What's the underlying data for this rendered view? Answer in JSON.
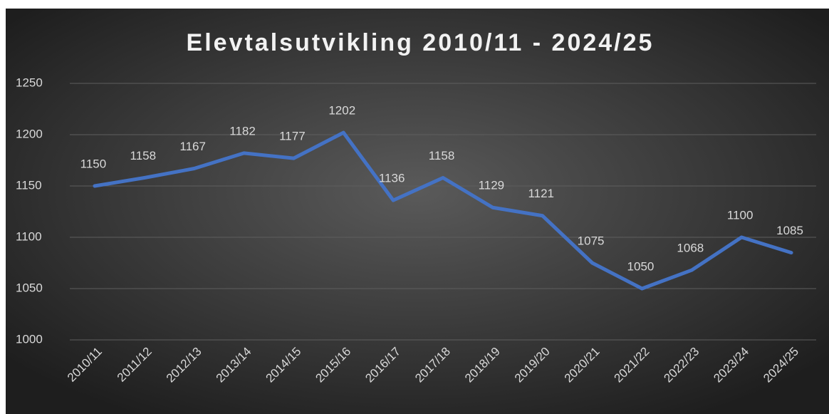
{
  "chart_data": {
    "type": "line",
    "title": "Elevtalsutvikling 2010/11 - 2024/25",
    "categories": [
      "2010/11",
      "2011/12",
      "2012/13",
      "2013/14",
      "2014/15",
      "2015/16",
      "2016/17",
      "2017/18",
      "2018/19",
      "2019/20",
      "2020/21",
      "2021/22",
      "2022/23",
      "2023/24",
      "2024/25"
    ],
    "values": [
      1150,
      1158,
      1167,
      1182,
      1177,
      1202,
      1136,
      1158,
      1129,
      1121,
      1075,
      1050,
      1068,
      1100,
      1085
    ],
    "color": "#4472c4",
    "ylim": [
      1000,
      1250
    ],
    "yticks": [
      1000,
      1050,
      1100,
      1150,
      1200,
      1250
    ],
    "grid": true
  }
}
